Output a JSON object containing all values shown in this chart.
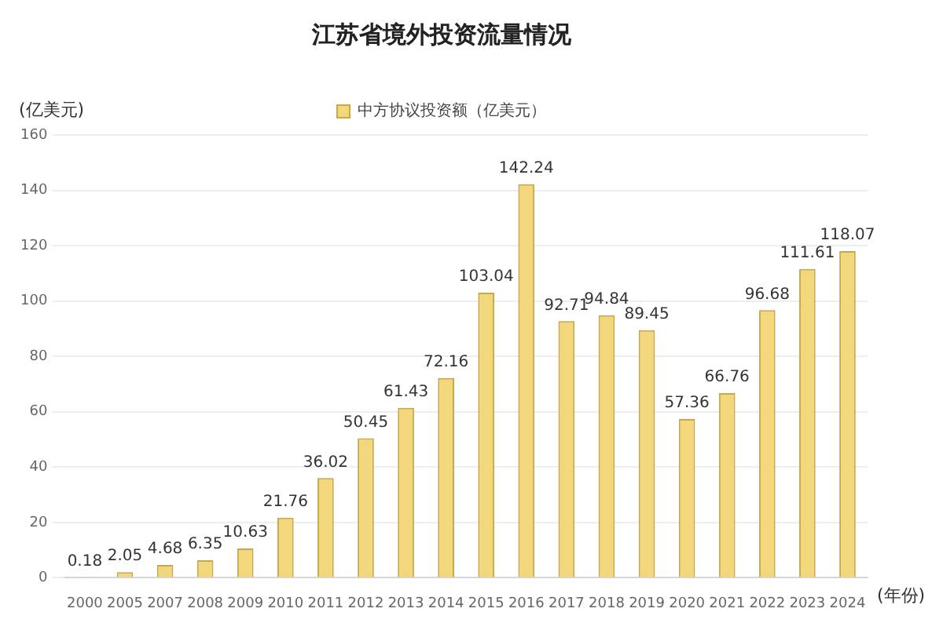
{
  "chart_data": {
    "type": "bar",
    "title": "江苏省境外投资流量情况",
    "ylabel": "(亿美元)",
    "xlabel": "(年份)",
    "categories": [
      "2000",
      "2005",
      "2007",
      "2008",
      "2009",
      "2010",
      "2011",
      "2012",
      "2013",
      "2014",
      "2015",
      "2016",
      "2017",
      "2018",
      "2019",
      "2020",
      "2021",
      "2022",
      "2023",
      "2024"
    ],
    "series": [
      {
        "name": "中方协议投资额（亿美元）",
        "color": "#f3d77c",
        "values": [
          0.18,
          2.05,
          4.68,
          6.35,
          10.63,
          21.76,
          36.02,
          50.45,
          61.43,
          72.16,
          103.04,
          142.24,
          92.71,
          94.84,
          89.45,
          57.36,
          66.76,
          96.68,
          111.61,
          118.07
        ]
      }
    ],
    "ylim": [
      0,
      160
    ],
    "yticks": [
      0,
      20,
      40,
      60,
      80,
      100,
      120,
      140,
      160
    ],
    "grid": "y",
    "legend": "top",
    "data_labels": true
  }
}
